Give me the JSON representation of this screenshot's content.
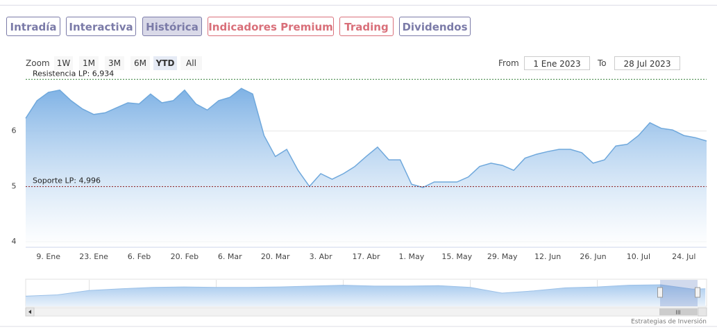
{
  "ui": {
    "tabs": [
      "Intradía",
      "Interactiva",
      "Histórica",
      "Indicadores Premium",
      "Trading",
      "Dividendos"
    ],
    "zoom_label": "Zoom",
    "zoom_buttons": [
      "1W",
      "1M",
      "3M",
      "6M",
      "YTD",
      "All"
    ],
    "from_label": "From",
    "from_value": "1 Ene 2023",
    "to_label": "To",
    "to_value": "28 Jul 2023",
    "credit": "Estrategias de Inversión"
  },
  "chart_data": {
    "type": "area",
    "color": "#6fa8dc",
    "categories": [
      null,
      null,
      "9. Ene",
      null,
      null,
      null,
      "23. Ene",
      null,
      null,
      null,
      "6. Feb",
      null,
      null,
      null,
      "20. Feb",
      null,
      null,
      null,
      "6. Mar",
      null,
      null,
      null,
      "20. Mar",
      null,
      null,
      null,
      "3. Abr",
      null,
      null,
      null,
      "17. Abr",
      null,
      null,
      null,
      "1. May",
      null,
      null,
      null,
      "15. May",
      null,
      null,
      null,
      "29. May",
      null,
      null,
      null,
      "12. Jun",
      null,
      null,
      null,
      "26. Jun",
      null,
      null,
      null,
      "10. Jul",
      null,
      null,
      null,
      "24. Jul",
      null,
      null
    ],
    "values": [
      6.23,
      6.55,
      6.7,
      6.74,
      6.55,
      6.4,
      6.3,
      6.33,
      6.42,
      6.51,
      6.49,
      6.67,
      6.51,
      6.55,
      6.74,
      6.49,
      6.38,
      6.55,
      6.61,
      6.77,
      6.67,
      5.92,
      5.54,
      5.67,
      5.29,
      5.0,
      5.23,
      5.13,
      5.23,
      5.36,
      5.54,
      5.71,
      5.48,
      5.48,
      5.04,
      4.98,
      5.08,
      5.08,
      5.08,
      5.17,
      5.36,
      5.42,
      5.38,
      5.29,
      5.51,
      5.58,
      5.63,
      5.67,
      5.67,
      5.61,
      5.42,
      5.48,
      5.73,
      5.76,
      5.92,
      6.15,
      6.05,
      6.02,
      5.92,
      5.88,
      5.82
    ],
    "ylim": [
      3.9,
      7.0
    ],
    "yticks": [
      4,
      5,
      6
    ],
    "grid": true,
    "plot_lines": [
      {
        "label": "Resistencia LP: 6,934",
        "value": 6.934,
        "color": "#2e7d32"
      },
      {
        "label": "Soporte LP: 4,996",
        "value": 4.996,
        "color": "#8b1a1a"
      }
    ],
    "navigator": {
      "x": [
        2013,
        2013.5,
        2014,
        2014.5,
        2015,
        2015.5,
        2016,
        2016.5,
        2017,
        2017.5,
        2018,
        2018.5,
        2019,
        2019.5,
        2020,
        2020.5,
        2021,
        2021.5,
        2022,
        2022.5,
        2023,
        2023.5,
        2023.7
      ],
      "values": [
        4.3,
        4.6,
        5.6,
        6.0,
        6.3,
        6.4,
        6.3,
        6.3,
        6.4,
        6.6,
        6.8,
        6.6,
        6.6,
        6.7,
        6.3,
        5.0,
        5.5,
        6.2,
        6.4,
        6.8,
        6.9,
        5.9,
        6.0
      ],
      "xlim": [
        2013,
        2023.72
      ],
      "xticks": [
        2014,
        2016,
        2018,
        2020,
        2022
      ],
      "ylim": [
        2,
        8
      ]
    }
  }
}
